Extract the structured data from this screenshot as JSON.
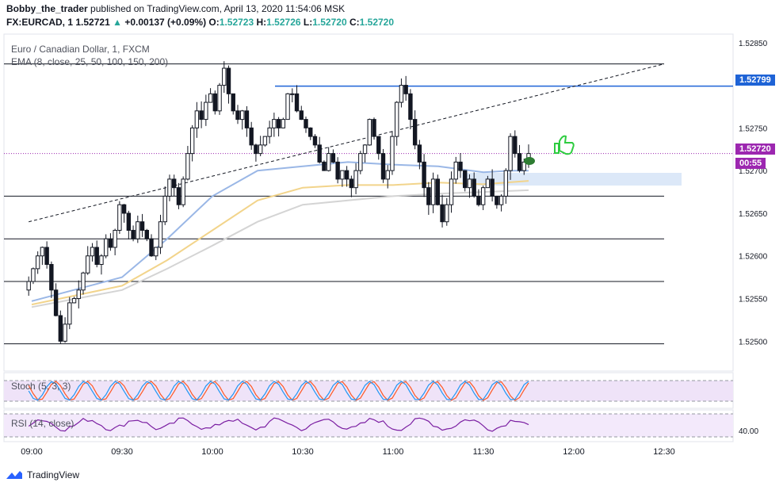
{
  "header": {
    "author": "Bobby_the_trader",
    "published": "published on TradingView.com, April 13, 2020 11:54:06 MSK",
    "symbol_line": {
      "symbol": "FX:EURCAD, 1",
      "last": "1.52721",
      "change": "+0.00137 (+0.09%)",
      "o_label": "O:",
      "o": "1.52723",
      "h_label": "H:",
      "h": "1.52726",
      "l_label": "L:",
      "l": "1.52720",
      "c_label": "C:",
      "c": "1.52720"
    }
  },
  "legend": {
    "pair": "Euro / Canadian Dollar, 1, FXCM",
    "ema": "EMA (8, close, 25, 50, 100, 150, 200)",
    "stoch": "Stoch (5, 3, 3)",
    "rsi": "RSI (14, close)"
  },
  "price_tags": {
    "level": "1.52799",
    "current": "1.52720",
    "countdown": "00:55"
  },
  "footer": {
    "brand": "TradingView"
  },
  "colors": {
    "up": "#26a69a",
    "candle": "#131722",
    "ema_blue": "#9ab7e6",
    "ema_yellow": "#f2d48b",
    "ema_gray": "#d4d4d4",
    "level_line": "#1e63d6",
    "current_line": "#9c27b0"
  },
  "chart_data": {
    "type": "candlestick",
    "x_ticks": [
      "09:00",
      "09:30",
      "10:00",
      "10:30",
      "11:00",
      "11:30",
      "12:00",
      "12:30"
    ],
    "y_ticks": [
      "1.52850",
      "1.52750",
      "1.52700",
      "1.52650",
      "1.52600",
      "1.52550",
      "1.52500"
    ],
    "ylim": [
      1.52465,
      1.5286
    ],
    "horizontal_levels": [
      1.52825,
      1.5267,
      1.5262,
      1.5257,
      1.52497
    ],
    "resistance_level": 1.52799,
    "current_price": 1.5272,
    "trendline": [
      [
        8.9833,
        1.5264
      ],
      [
        12.5,
        1.52825
      ]
    ],
    "close_series": [
      1.5257,
      1.52585,
      1.526,
      1.5261,
      1.5259,
      1.5256,
      1.5253,
      1.525,
      1.5252,
      1.52545,
      1.5255,
      1.5256,
      1.5258,
      1.526,
      1.5261,
      1.5259,
      1.526,
      1.5262,
      1.5261,
      1.5263,
      1.5266,
      1.5265,
      1.5263,
      1.5262,
      1.5264,
      1.5263,
      1.5262,
      1.526,
      1.5261,
      1.5264,
      1.5267,
      1.5269,
      1.5268,
      1.5266,
      1.5269,
      1.5272,
      1.5275,
      1.5277,
      1.5276,
      1.5278,
      1.5279,
      1.5277,
      1.528,
      1.5282,
      1.5279,
      1.5277,
      1.5276,
      1.5277,
      1.5275,
      1.5273,
      1.5272,
      1.5273,
      1.5274,
      1.5275,
      1.5276,
      1.5275,
      1.5276,
      1.5279,
      1.5279,
      1.5277,
      1.5276,
      1.5275,
      1.5274,
      1.5273,
      1.5271,
      1.527,
      1.5272,
      1.5271,
      1.5269,
      1.527,
      1.5269,
      1.5268,
      1.527,
      1.5272,
      1.5273,
      1.5276,
      1.5274,
      1.5272,
      1.5269,
      1.527,
      1.5274,
      1.5278,
      1.528,
      1.5279,
      1.5276,
      1.5273,
      1.5271,
      1.5268,
      1.5266,
      1.5269,
      1.5266,
      1.5264,
      1.5266,
      1.5269,
      1.5271,
      1.527,
      1.5268,
      1.5269,
      1.5267,
      1.5266,
      1.5268,
      1.5269,
      1.5267,
      1.5266,
      1.5267,
      1.527,
      1.5274,
      1.5272,
      1.527,
      1.5271,
      1.5272
    ],
    "ema_blue": [
      [
        9.0,
        1.52547
      ],
      [
        9.5,
        1.52575
      ],
      [
        9.75,
        1.5262
      ],
      [
        10.0,
        1.5267
      ],
      [
        10.25,
        1.527
      ],
      [
        10.5,
        1.52705
      ],
      [
        10.75,
        1.5271
      ],
      [
        11.0,
        1.52707
      ],
      [
        11.25,
        1.52705
      ],
      [
        11.5,
        1.52698
      ],
      [
        11.65,
        1.527
      ],
      [
        11.75,
        1.527
      ]
    ],
    "ema_yellow": [
      [
        9.0,
        1.52543
      ],
      [
        9.5,
        1.52565
      ],
      [
        9.75,
        1.52595
      ],
      [
        10.0,
        1.5263
      ],
      [
        10.25,
        1.52665
      ],
      [
        10.5,
        1.5268
      ],
      [
        10.75,
        1.52683
      ],
      [
        11.0,
        1.52683
      ],
      [
        11.25,
        1.52686
      ],
      [
        11.5,
        1.52684
      ],
      [
        11.75,
        1.52688
      ]
    ],
    "ema_gray": [
      [
        9.0,
        1.5254
      ],
      [
        9.5,
        1.5256
      ],
      [
        9.75,
        1.52585
      ],
      [
        10.0,
        1.52612
      ],
      [
        10.25,
        1.5264
      ],
      [
        10.5,
        1.5266
      ],
      [
        10.75,
        1.52665
      ],
      [
        11.0,
        1.5267
      ],
      [
        11.25,
        1.52673
      ],
      [
        11.5,
        1.52675
      ],
      [
        11.75,
        1.52677
      ]
    ]
  }
}
